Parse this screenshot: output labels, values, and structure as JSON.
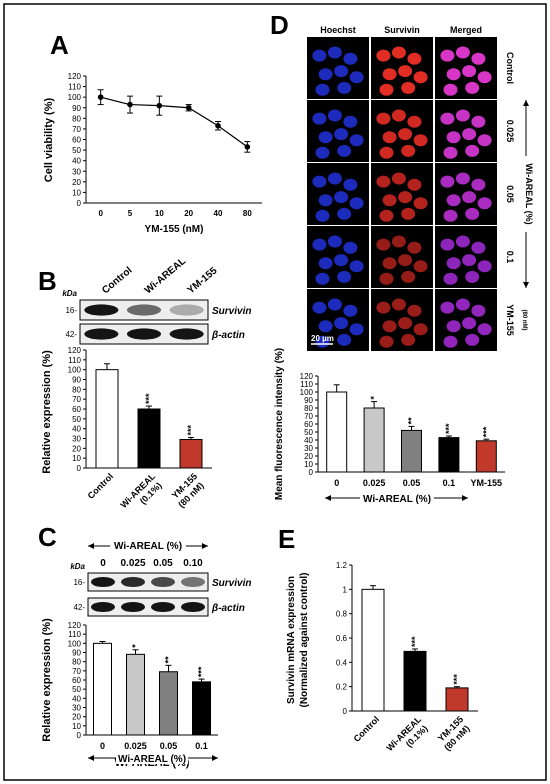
{
  "panels": {
    "A": {
      "letter": "A",
      "chart_data": {
        "type": "line",
        "categories": [
          "0",
          "5",
          "10",
          "20",
          "40",
          "80"
        ],
        "values": [
          100,
          93,
          92,
          90,
          73,
          53
        ],
        "errors": [
          7,
          8,
          9,
          3,
          4,
          5
        ],
        "xlabel": "YM-155 (nM)",
        "ylabel": "Cell viability (%)",
        "ylim": [
          0,
          120
        ],
        "yticks": [
          0,
          10,
          20,
          30,
          40,
          50,
          60,
          70,
          80,
          90,
          100,
          110,
          120
        ]
      }
    },
    "B": {
      "letter": "B",
      "blot": {
        "lane_labels": [
          "Control",
          "Wi-AREAL",
          "YM-155"
        ],
        "kda_label": "kDa",
        "markers": [
          "16-",
          "42-"
        ],
        "band_labels": [
          "Survivin",
          "β-actin"
        ],
        "survivin_intensity": [
          1.0,
          0.6,
          0.3
        ],
        "actin_intensity": [
          1.0,
          1.0,
          1.0
        ]
      },
      "chart_data": {
        "type": "bar",
        "categories": [
          "Control",
          "Wi-AREAL (0.1%)",
          "YM-155 (80 nM)"
        ],
        "tick_lines": [
          [
            "Control"
          ],
          [
            "Wi-AREAL",
            "(0.1%)"
          ],
          [
            "YM-155",
            "(80 nM)"
          ]
        ],
        "values": [
          100,
          60,
          29
        ],
        "errors": [
          6,
          3,
          2
        ],
        "colors": [
          "#ffffff",
          "#000000",
          "#c0392b"
        ],
        "significance": [
          "",
          "***",
          "***"
        ],
        "ylabel": "Relative expression (%)",
        "ylim": [
          0,
          120
        ],
        "yticks": [
          0,
          10,
          20,
          30,
          40,
          50,
          60,
          70,
          80,
          90,
          100,
          110,
          120
        ]
      }
    },
    "C": {
      "letter": "C",
      "blot": {
        "header": "Wi-AREAL (%)",
        "lane_labels": [
          "0",
          "0.025",
          "0.05",
          "0.10"
        ],
        "markers": [
          "16-",
          "42-"
        ],
        "kda_label": "kDa",
        "band_labels": [
          "Survivin",
          "β-actin"
        ],
        "survivin_intensity": [
          1.0,
          0.9,
          0.75,
          0.55
        ],
        "actin_intensity": [
          1.0,
          1.0,
          1.0,
          1.0
        ]
      },
      "chart_data": {
        "type": "bar",
        "categories": [
          "0",
          "0.025",
          "0.05",
          "0.1"
        ],
        "values": [
          100,
          88,
          69,
          58
        ],
        "errors": [
          2,
          5,
          7,
          3
        ],
        "colors": [
          "#ffffff",
          "#c8c8c8",
          "#808080",
          "#000000"
        ],
        "significance": [
          "",
          "*",
          "**",
          "***"
        ],
        "xlabel": "Wi-AREAL (%)",
        "ylabel": "Relative expression (%)",
        "ylim": [
          0,
          120
        ],
        "yticks": [
          0,
          10,
          20,
          30,
          40,
          50,
          60,
          70,
          80,
          90,
          100,
          110,
          120
        ]
      }
    },
    "D": {
      "letter": "D",
      "columns": [
        "Hoechst",
        "Survivin",
        "Merged"
      ],
      "row_labels": [
        "Control",
        "0.025",
        "0.05",
        "0.1",
        "YM-155"
      ],
      "row_sublabel": "(80 nM)",
      "group_label": "Wi-AREAL (%)",
      "scale_bar": "20 µm",
      "survivin_intensity": [
        1.0,
        0.85,
        0.6,
        0.35,
        0.4
      ],
      "chart_data": {
        "type": "bar",
        "categories": [
          "0",
          "0.025",
          "0.05",
          "0.1",
          "YM-155"
        ],
        "values": [
          100,
          80,
          52,
          43,
          39
        ],
        "errors": [
          9,
          8,
          5,
          2,
          2
        ],
        "colors": [
          "#ffffff",
          "#c8c8c8",
          "#808080",
          "#000000",
          "#c0392b"
        ],
        "significance": [
          "",
          "*",
          "**",
          "***",
          "***"
        ],
        "xlabel": "Wi-AREAL (%)",
        "ylabel": "Mean fluorescence intensity (%)",
        "ylim": [
          0,
          120
        ],
        "yticks": [
          0,
          10,
          20,
          30,
          40,
          50,
          60,
          70,
          80,
          90,
          100,
          110,
          120
        ]
      }
    },
    "E": {
      "letter": "E",
      "chart_data": {
        "type": "bar",
        "categories": [
          "Control",
          "Wi-AREAL (0.1%)",
          "YM-155 (80 nM)"
        ],
        "tick_lines": [
          [
            "Control"
          ],
          [
            "Wi-AREAL",
            "(0.1%)"
          ],
          [
            "YM-155",
            "(80 nM)"
          ]
        ],
        "values": [
          1.0,
          0.49,
          0.19
        ],
        "errors": [
          0.03,
          0.02,
          0.01
        ],
        "colors": [
          "#ffffff",
          "#000000",
          "#c0392b"
        ],
        "significance": [
          "",
          "***",
          "***"
        ],
        "ylabel": "Survivin mRNA expression",
        "ylabel2": "(Normalized against control)",
        "ylim": [
          0,
          1.2
        ],
        "yticks": [
          0,
          0.2,
          0.4,
          0.6,
          0.8,
          1,
          1.2
        ]
      }
    }
  }
}
